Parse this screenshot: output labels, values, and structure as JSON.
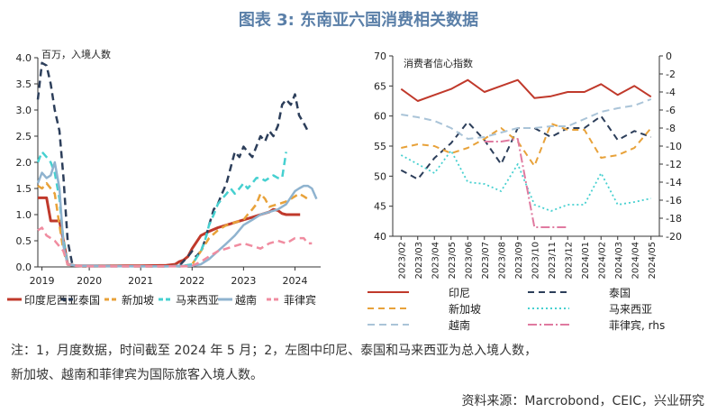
{
  "page": {
    "title": "图表 3: 东南亚六国消费相关数据",
    "note_line1": "注：1，月度数据，时间截至 2024 年 5 月；2，左图中印尼、泰国和马来西亚为总入境人数，",
    "note_line2": "新加坡、越南和菲律宾为国际旅客入境人数。",
    "source": "资料来源：Marcrobond，CEIC，兴业研究"
  },
  "chart_data": [
    {
      "type": "line",
      "title": "百万，入境人数",
      "xlim": [
        2019.0,
        2024.5
      ],
      "ylim": [
        0,
        4.0
      ],
      "yticks": [
        "0.0",
        "0.5",
        "1.0",
        "1.5",
        "2.0",
        "2.5",
        "3.0",
        "3.5",
        "4.0"
      ],
      "xticks": [
        {
          "value": 2019.08,
          "label": "2019"
        },
        {
          "value": 2020.0,
          "label": "2020"
        },
        {
          "value": 2021.0,
          "label": "2021"
        },
        {
          "value": 2022.0,
          "label": "2022"
        },
        {
          "value": 2023.0,
          "label": "2023"
        },
        {
          "value": 2024.0,
          "label": "2024"
        }
      ],
      "series": [
        {
          "name": "印度尼西亚",
          "color": "#c0392b",
          "dash": "",
          "width": 3,
          "x": [
            2019.0,
            2019.17,
            2019.25,
            2019.42,
            2019.5,
            2019.58,
            2019.75,
            2020.0,
            2020.5,
            2021.0,
            2021.5,
            2021.67,
            2021.75,
            2021.83,
            2021.92,
            2022.0,
            2022.17,
            2022.33,
            2022.5,
            2022.67,
            2022.83,
            2023.0,
            2023.17,
            2023.33,
            2023.5,
            2023.58,
            2023.67,
            2023.75,
            2023.83,
            2024.0,
            2024.1
          ],
          "y": [
            1.32,
            1.32,
            0.88,
            0.88,
            0.5,
            0.05,
            0.02,
            0.02,
            0.02,
            0.02,
            0.03,
            0.05,
            0.1,
            0.13,
            0.2,
            0.35,
            0.6,
            0.68,
            0.75,
            0.8,
            0.85,
            0.9,
            0.95,
            1.0,
            1.05,
            1.1,
            1.08,
            1.02,
            1.0,
            1.0,
            1.0
          ]
        },
        {
          "name": "泰国",
          "color": "#2c3e5a",
          "dash": "8,5",
          "width": 2.5,
          "x": [
            2019.0,
            2019.08,
            2019.17,
            2019.25,
            2019.33,
            2019.42,
            2019.5,
            2019.58,
            2019.67,
            2019.75,
            2020.0,
            2021.0,
            2021.5,
            2021.75,
            2021.92,
            2022.0,
            2022.08,
            2022.17,
            2022.25,
            2022.33,
            2022.42,
            2022.5,
            2022.58,
            2022.67,
            2022.75,
            2022.83,
            2022.92,
            2023.0,
            2023.08,
            2023.17,
            2023.25,
            2023.33,
            2023.42,
            2023.5,
            2023.58,
            2023.67,
            2023.75,
            2023.83,
            2023.92,
            2024.0,
            2024.08,
            2024.17,
            2024.25
          ],
          "y": [
            3.2,
            3.9,
            3.85,
            3.5,
            3.0,
            2.6,
            1.7,
            0.5,
            0.05,
            0.02,
            0.01,
            0.01,
            0.01,
            0.02,
            0.2,
            0.3,
            0.2,
            0.3,
            0.5,
            0.8,
            1.1,
            1.2,
            1.4,
            1.6,
            1.9,
            2.2,
            2.1,
            2.3,
            2.2,
            2.1,
            2.3,
            2.5,
            2.4,
            2.6,
            2.5,
            2.7,
            3.1,
            3.2,
            3.1,
            3.3,
            2.9,
            2.75,
            2.6
          ]
        },
        {
          "name": "新加坡",
          "color": "#e8a23a",
          "dash": "8,5",
          "width": 2.5,
          "x": [
            2019.0,
            2019.08,
            2019.17,
            2019.25,
            2019.33,
            2019.42,
            2019.5,
            2019.58,
            2019.75,
            2020.0,
            2021.0,
            2021.5,
            2021.83,
            2022.0,
            2022.17,
            2022.33,
            2022.5,
            2022.67,
            2022.83,
            2023.0,
            2023.08,
            2023.17,
            2023.25,
            2023.33,
            2023.42,
            2023.5,
            2023.67,
            2023.83,
            2023.92,
            2024.0,
            2024.08,
            2024.17,
            2024.25
          ],
          "y": [
            1.55,
            1.5,
            1.6,
            1.5,
            1.4,
            0.8,
            0.3,
            0.05,
            0.02,
            0.02,
            0.01,
            0.01,
            0.02,
            0.05,
            0.3,
            0.55,
            0.7,
            0.8,
            0.85,
            0.9,
            1.0,
            1.1,
            1.2,
            1.4,
            1.3,
            1.15,
            1.2,
            1.25,
            1.3,
            1.35,
            1.4,
            1.35,
            1.3
          ]
        },
        {
          "name": "马来西亚",
          "color": "#46d0d0",
          "dash": "8,5",
          "width": 2.5,
          "x": [
            2019.0,
            2019.08,
            2019.17,
            2019.25,
            2019.33,
            2019.42,
            2019.5,
            2019.58,
            2019.75,
            2020.0,
            2021.0,
            2021.5,
            2021.83,
            2022.0,
            2022.17,
            2022.25,
            2022.33,
            2022.42,
            2022.5,
            2022.58,
            2022.67,
            2022.75,
            2022.83,
            2022.92,
            2023.0,
            2023.08,
            2023.17,
            2023.25,
            2023.33,
            2023.42,
            2023.5,
            2023.58,
            2023.67,
            2023.75,
            2023.83
          ],
          "y": [
            2.0,
            2.2,
            2.1,
            2.0,
            1.8,
            1.3,
            0.5,
            0.05,
            0.02,
            0.02,
            0.01,
            0.01,
            0.02,
            0.05,
            0.3,
            0.5,
            0.8,
            1.0,
            1.2,
            1.3,
            1.4,
            1.5,
            1.4,
            1.5,
            1.6,
            1.5,
            1.6,
            1.7,
            1.7,
            1.65,
            1.7,
            1.75,
            1.7,
            1.7,
            2.2
          ]
        },
        {
          "name": "越南",
          "color": "#8fb3cf",
          "dash": "",
          "width": 2.5,
          "x": [
            2019.0,
            2019.08,
            2019.17,
            2019.25,
            2019.33,
            2019.42,
            2019.5,
            2019.58,
            2019.75,
            2020.0,
            2021.0,
            2021.5,
            2021.83,
            2022.0,
            2022.17,
            2022.33,
            2022.5,
            2022.67,
            2022.83,
            2023.0,
            2023.17,
            2023.33,
            2023.5,
            2023.67,
            2023.83,
            2024.0,
            2024.08,
            2024.17,
            2024.25,
            2024.33,
            2024.42
          ],
          "y": [
            1.6,
            1.8,
            1.7,
            1.75,
            2.0,
            1.5,
            0.4,
            0.05,
            0.02,
            0.02,
            0.01,
            0.01,
            0.02,
            0.02,
            0.05,
            0.15,
            0.3,
            0.45,
            0.6,
            0.8,
            0.9,
            1.0,
            1.05,
            1.1,
            1.2,
            1.45,
            1.5,
            1.55,
            1.55,
            1.5,
            1.3
          ]
        },
        {
          "name": "菲律宾",
          "color": "#f08ca0",
          "dash": "8,5",
          "width": 2.5,
          "x": [
            2019.0,
            2019.08,
            2019.17,
            2019.25,
            2019.33,
            2019.5,
            2019.58,
            2019.75,
            2020.0,
            2021.0,
            2021.5,
            2021.83,
            2022.0,
            2022.17,
            2022.33,
            2022.5,
            2022.67,
            2022.83,
            2023.0,
            2023.17,
            2023.33,
            2023.5,
            2023.67,
            2023.83,
            2024.0,
            2024.17,
            2024.25,
            2024.33
          ],
          "y": [
            0.7,
            0.75,
            0.6,
            0.55,
            0.5,
            0.3,
            0.05,
            0.02,
            0.01,
            0.01,
            0.01,
            0.01,
            0.02,
            0.1,
            0.2,
            0.3,
            0.35,
            0.4,
            0.45,
            0.4,
            0.35,
            0.45,
            0.5,
            0.45,
            0.55,
            0.55,
            0.45,
            0.45
          ]
        }
      ]
    },
    {
      "type": "line",
      "title": "消费者信心指数",
      "categories": [
        "2023/02",
        "2023/03",
        "2023/04",
        "2023/05",
        "2023/06",
        "2023/07",
        "2023/08",
        "2023/09",
        "2023/10",
        "2023/11",
        "2023/12",
        "2024/01",
        "2024/02",
        "2024/03",
        "2024/04",
        "2024/05"
      ],
      "ylim_left": [
        40,
        70
      ],
      "yticks_left": [
        "40",
        "45",
        "50",
        "55",
        "60",
        "65",
        "70"
      ],
      "ylim_right": [
        -20,
        0
      ],
      "yticks_right": [
        "-20",
        "-18",
        "-16",
        "-14",
        "-12",
        "-10",
        "-8",
        "-6",
        "-4",
        "-2",
        "0"
      ],
      "series": [
        {
          "name": "印尼",
          "color": "#c0392b",
          "dash": "",
          "width": 2,
          "axis": "left",
          "values": [
            64.5,
            62.5,
            63.5,
            64.5,
            66.0,
            64.0,
            65.0,
            66.0,
            63.0,
            63.3,
            64.0,
            64.0,
            65.3,
            63.5,
            65.0,
            63.2
          ]
        },
        {
          "name": "泰国",
          "color": "#2c3e5a",
          "dash": "7,5",
          "width": 2,
          "axis": "left",
          "values": [
            51.0,
            49.5,
            53.0,
            55.5,
            59.0,
            56.0,
            52.0,
            58.0,
            58.0,
            56.5,
            58.0,
            58.0,
            60.0,
            56.0,
            57.5,
            56.5
          ]
        },
        {
          "name": "新加坡",
          "color": "#e8a23a",
          "dash": "7,5",
          "width": 2,
          "axis": "right",
          "values": [
            -10.2,
            -9.8,
            -10.0,
            -10.8,
            -10.2,
            -9.2,
            -8.0,
            -9.5,
            -12.2,
            -7.5,
            -8.2,
            -8.2,
            -11.3,
            -11.0,
            -10.2,
            -8.0
          ]
        },
        {
          "name": "马来西亚",
          "color": "#46d0d0",
          "dash": "2,3",
          "width": 1.8,
          "axis": "right",
          "values": [
            -11.0,
            -12.0,
            -13.0,
            -10.5,
            -14.0,
            -14.2,
            -15.0,
            -12.0,
            -16.5,
            -17.2,
            -16.5,
            -16.5,
            -13.0,
            -16.5,
            -16.2,
            -15.8
          ]
        },
        {
          "name": "越南",
          "color": "#aac4d8",
          "dash": "8,5",
          "width": 2,
          "axis": "right",
          "values": [
            -6.5,
            -6.8,
            -7.2,
            -8.0,
            -9.2,
            -9.0,
            -8.5,
            -8.0,
            -8.0,
            -7.8,
            -7.8,
            -7.0,
            -6.2,
            -5.8,
            -5.5,
            -4.8
          ]
        },
        {
          "name": "菲律宾, rhs",
          "color": "#e07aa0",
          "dash": "10,3,2,3",
          "width": 2,
          "axis": "right",
          "values": [
            null,
            null,
            null,
            null,
            null,
            -9.5,
            -9.5,
            -9.2,
            -19.0,
            -19.0,
            -19.0,
            null,
            null,
            null,
            null,
            null
          ]
        }
      ]
    }
  ]
}
